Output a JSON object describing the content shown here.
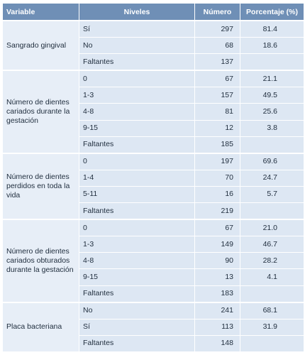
{
  "headers": [
    "Variable",
    "Niveles",
    "Número",
    "Porcentaje (%)"
  ],
  "groups": [
    {
      "variable": "Sangrado gingival",
      "rows": [
        {
          "nivel": "Sí",
          "numero": "297",
          "porcentaje": "81.4"
        },
        {
          "nivel": "No",
          "numero": "68",
          "porcentaje": "18.6"
        },
        {
          "nivel": "Faltantes",
          "numero": "137",
          "porcentaje": ""
        }
      ]
    },
    {
      "variable": "Número de dientes cariados durante la gestación",
      "rows": [
        {
          "nivel": "0",
          "numero": "67",
          "porcentaje": "21.1"
        },
        {
          "nivel": "1-3",
          "numero": "157",
          "porcentaje": "49.5"
        },
        {
          "nivel": "4-8",
          "numero": "81",
          "porcentaje": "25.6"
        },
        {
          "nivel": "9-15",
          "numero": "12",
          "porcentaje": "3.8"
        },
        {
          "nivel": "Faltantes",
          "numero": "185",
          "porcentaje": ""
        }
      ]
    },
    {
      "variable": "Número de dientes perdidos en toda la vida",
      "rows": [
        {
          "nivel": "0",
          "numero": "197",
          "porcentaje": "69.6"
        },
        {
          "nivel": "1-4",
          "numero": "70",
          "porcentaje": "24.7"
        },
        {
          "nivel": "5-11",
          "numero": "16",
          "porcentaje": "5.7"
        },
        {
          "nivel": "Faltantes",
          "numero": "219",
          "porcentaje": ""
        }
      ]
    },
    {
      "variable": "Número de dientes cariados obturados durante la gestación",
      "rows": [
        {
          "nivel": "0",
          "numero": "67",
          "porcentaje": "21.0"
        },
        {
          "nivel": "1-3",
          "numero": "149",
          "porcentaje": "46.7"
        },
        {
          "nivel": "4-8",
          "numero": "90",
          "porcentaje": "28.2"
        },
        {
          "nivel": "9-15",
          "numero": "13",
          "porcentaje": "4.1"
        },
        {
          "nivel": "Faltantes",
          "numero": "183",
          "porcentaje": ""
        }
      ]
    },
    {
      "variable": "Placa bacteriana",
      "rows": [
        {
          "nivel": "No",
          "numero": "241",
          "porcentaje": "68.1"
        },
        {
          "nivel": "Sí",
          "numero": "113",
          "porcentaje": "31.9"
        },
        {
          "nivel": "Faltantes",
          "numero": "148",
          "porcentaje": ""
        }
      ]
    }
  ]
}
